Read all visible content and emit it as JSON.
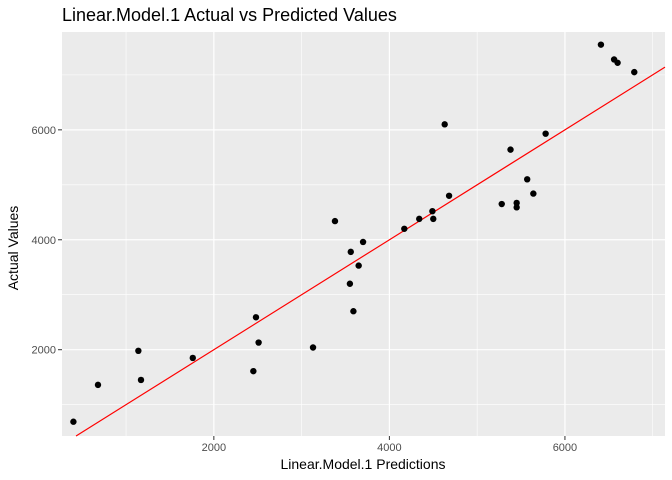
{
  "chart_data": {
    "type": "scatter",
    "title": "Linear.Model.1 Actual vs Predicted Values",
    "xlabel": "Linear.Model.1 Predictions",
    "ylabel": "Actual Values",
    "xlim": [
      270,
      7140
    ],
    "ylim": [
      430,
      7780
    ],
    "xticks": [
      2000,
      4000,
      6000
    ],
    "yticks": [
      2000,
      4000,
      6000
    ],
    "grid": true,
    "colors": {
      "panel": "#ebebeb",
      "grid": "#ffffff",
      "points": "#000000",
      "fit_line": "#ff0000"
    },
    "fit_line": {
      "slope": 1,
      "intercept": 0,
      "color": "#ff0000"
    },
    "points": [
      {
        "x": 400,
        "y": 690
      },
      {
        "x": 680,
        "y": 1360
      },
      {
        "x": 1140,
        "y": 1980
      },
      {
        "x": 1170,
        "y": 1450
      },
      {
        "x": 1760,
        "y": 1850
      },
      {
        "x": 2450,
        "y": 1610
      },
      {
        "x": 2480,
        "y": 2590
      },
      {
        "x": 2510,
        "y": 2130
      },
      {
        "x": 3130,
        "y": 2040
      },
      {
        "x": 3380,
        "y": 4340
      },
      {
        "x": 3550,
        "y": 3200
      },
      {
        "x": 3560,
        "y": 3780
      },
      {
        "x": 3590,
        "y": 2700
      },
      {
        "x": 3650,
        "y": 3530
      },
      {
        "x": 3700,
        "y": 3960
      },
      {
        "x": 4170,
        "y": 4200
      },
      {
        "x": 4340,
        "y": 4380
      },
      {
        "x": 4490,
        "y": 4520
      },
      {
        "x": 4500,
        "y": 4380
      },
      {
        "x": 4630,
        "y": 6100
      },
      {
        "x": 4680,
        "y": 4800
      },
      {
        "x": 5280,
        "y": 4650
      },
      {
        "x": 5380,
        "y": 5640
      },
      {
        "x": 5450,
        "y": 4670
      },
      {
        "x": 5450,
        "y": 4590
      },
      {
        "x": 5570,
        "y": 5100
      },
      {
        "x": 5640,
        "y": 4840
      },
      {
        "x": 5780,
        "y": 5930
      },
      {
        "x": 6410,
        "y": 7550
      },
      {
        "x": 6560,
        "y": 7280
      },
      {
        "x": 6600,
        "y": 7220
      },
      {
        "x": 6790,
        "y": 7050
      }
    ]
  }
}
